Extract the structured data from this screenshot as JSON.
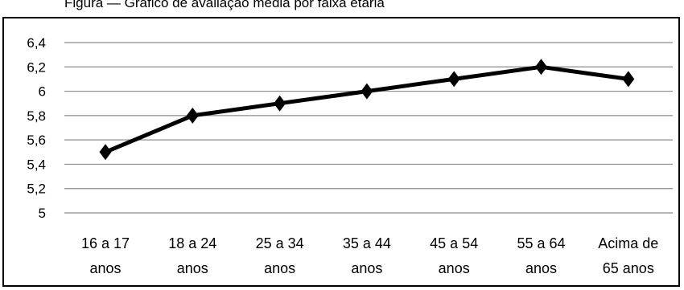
{
  "caption": {
    "text": "Figura — Gráfico de avaliação média por faixa etária"
  },
  "chart_data": {
    "type": "line",
    "categories": [
      [
        "16 a 17",
        "anos"
      ],
      [
        "18 a 24",
        "anos"
      ],
      [
        "25 a 34",
        "anos"
      ],
      [
        "35 a 44",
        "anos"
      ],
      [
        "45 a 54",
        "anos"
      ],
      [
        "55 a 64",
        "anos"
      ],
      [
        "Acima de",
        "65 anos"
      ]
    ],
    "values": [
      5.5,
      5.8,
      5.9,
      6.0,
      6.1,
      6.2,
      6.1
    ],
    "ylim": [
      5,
      6.4
    ],
    "yticks": [
      "5",
      "5,2",
      "5,4",
      "5,6",
      "5,8",
      "6",
      "6,2",
      "6,4"
    ],
    "ytick_values": [
      5,
      5.2,
      5.4,
      5.6,
      5.8,
      6.0,
      6.2,
      6.4
    ],
    "grid": true,
    "marker": "diamond",
    "line_color": "#000000",
    "grid_color": "#8c8c8c"
  }
}
